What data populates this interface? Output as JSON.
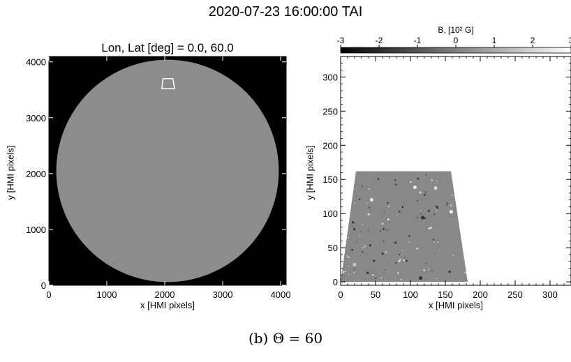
{
  "figure": {
    "main_title": "2020-07-23 16:00:00 TAI",
    "caption": "(b) Θ = 60"
  },
  "colors": {
    "disk": "#8c8c8c",
    "background_left": "#000000",
    "patch_mid": "#808080"
  },
  "chart_data": [
    {
      "type": "heatmap",
      "title": "Lon, Lat [deg] = 0.0, 60.0",
      "xlabel": "x [HMI pixels]",
      "ylabel": "y [HMI pixels]",
      "xlim": [
        0,
        4096
      ],
      "ylim": [
        0,
        4096
      ],
      "x_ticks": [
        "0",
        "1000",
        "2000",
        "3000",
        "4000"
      ],
      "y_ticks": [
        "0",
        "1000",
        "2000",
        "3000",
        "4000"
      ],
      "solar_disk": {
        "center": [
          2048,
          2048
        ],
        "radius": 1920
      },
      "patch_outline_x": [
        1970,
        2140,
        2170,
        1950
      ],
      "patch_outline_y": [
        3700,
        3700,
        3520,
        3520
      ]
    },
    {
      "type": "heatmap",
      "xlabel": "x [HMI pixels]",
      "ylabel": "y [HMI pixels]",
      "xlim": [
        0,
        330
      ],
      "ylim": [
        -5,
        330
      ],
      "x_ticks": [
        "0",
        "50",
        "100",
        "150",
        "200",
        "250",
        "300"
      ],
      "y_ticks": [
        "0",
        "50",
        "100",
        "150",
        "200",
        "250",
        "300"
      ],
      "colorbar": {
        "label": "B, [10² G]",
        "range": [
          -3,
          3
        ],
        "ticks": [
          "-3",
          "-2",
          "-1",
          "0",
          "1",
          "2",
          "3"
        ]
      },
      "patch_region_x": [
        0,
        22,
        158,
        182
      ],
      "patch_region_y": [
        0,
        162,
        162,
        0
      ]
    }
  ]
}
